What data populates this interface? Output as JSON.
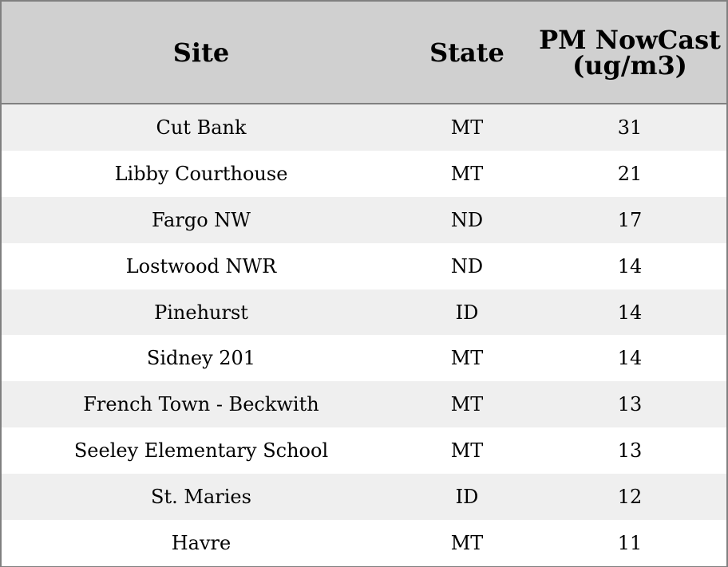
{
  "table": {
    "headers": [
      "Site",
      "State",
      "PM NowCast (ug/m3)"
    ],
    "rows": [
      [
        "Cut Bank",
        "MT",
        "31"
      ],
      [
        "Libby Courthouse",
        "MT",
        "21"
      ],
      [
        "Fargo NW",
        "ND",
        "17"
      ],
      [
        "Lostwood NWR",
        "ND",
        "14"
      ],
      [
        "Pinehurst",
        "ID",
        "14"
      ],
      [
        "Sidney 201",
        "MT",
        "14"
      ],
      [
        "French Town - Beckwith",
        "MT",
        "13"
      ],
      [
        "Seeley Elementary School",
        "MT",
        "13"
      ],
      [
        "St. Maries",
        "ID",
        "12"
      ],
      [
        "Havre",
        "MT",
        "11"
      ]
    ]
  }
}
